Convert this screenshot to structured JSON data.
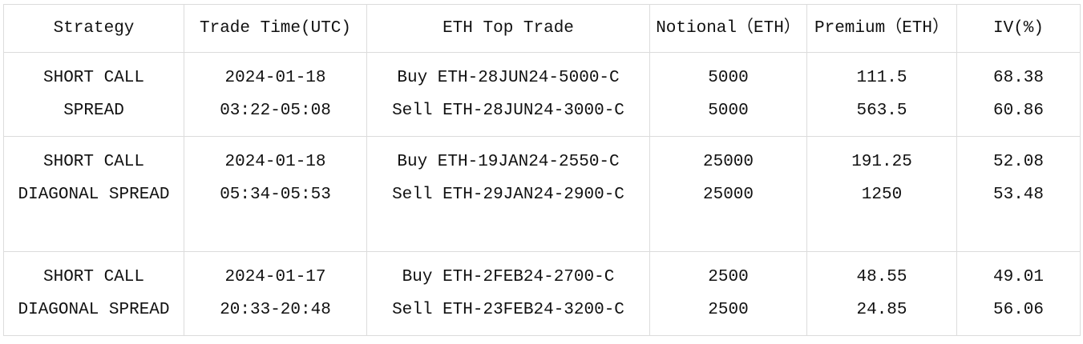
{
  "headers": [
    "Strategy",
    "Trade Time(UTC)",
    "ETH Top Trade",
    "Notional（ETH）",
    "Premium（ETH）",
    "IV(%)"
  ],
  "rows": [
    {
      "strategy": [
        "SHORT CALL",
        "SPREAD"
      ],
      "time": [
        "2024-01-18",
        "03:22-05:08"
      ],
      "trade": [
        "Buy ETH-28JUN24-5000-C",
        "Sell ETH-28JUN24-3000-C"
      ],
      "notional": [
        "5000",
        "5000"
      ],
      "premium": [
        "111.5",
        "563.5"
      ],
      "iv": [
        "68.38",
        "60.86"
      ]
    },
    {
      "strategy": [
        "SHORT CALL",
        "DIAGONAL SPREAD"
      ],
      "time": [
        "2024-01-18",
        "05:34-05:53"
      ],
      "trade": [
        "Buy ETH-19JAN24-2550-C",
        "Sell ETH-29JAN24-2900-C"
      ],
      "notional": [
        "25000",
        "25000"
      ],
      "premium": [
        "191.25",
        "1250"
      ],
      "iv": [
        "52.08",
        "53.48"
      ]
    },
    {
      "strategy": [
        "SHORT CALL",
        "DIAGONAL SPREAD"
      ],
      "time": [
        "2024-01-17",
        "20:33-20:48"
      ],
      "trade": [
        "Buy ETH-2FEB24-2700-C",
        "Sell ETH-23FEB24-3200-C"
      ],
      "notional": [
        "2500",
        "2500"
      ],
      "premium": [
        "48.55",
        "24.85"
      ],
      "iv": [
        "49.01",
        "56.06"
      ]
    }
  ]
}
